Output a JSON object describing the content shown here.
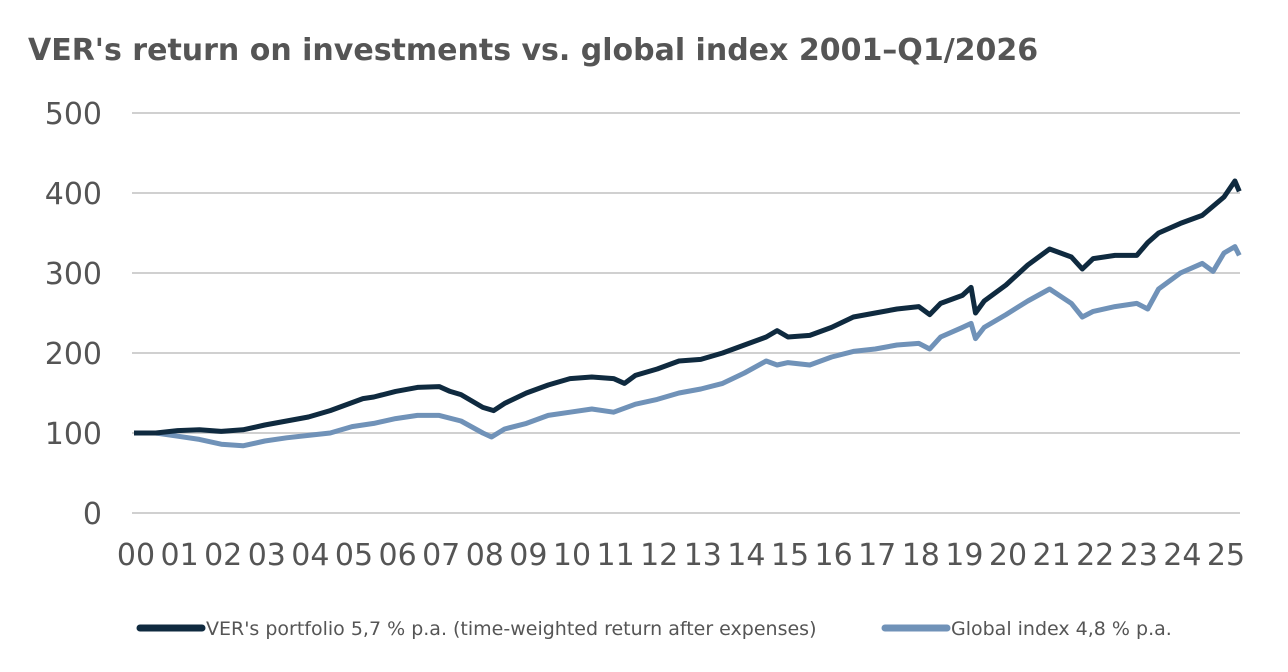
{
  "chart_data": {
    "type": "line",
    "title": "VER's return on investments vs. global index 2001–Q1/2026",
    "xlabel": "",
    "ylabel": "",
    "ylim": [
      0,
      500
    ],
    "yticks": [
      0,
      100,
      200,
      300,
      400,
      500
    ],
    "xlim": [
      2000,
      2025.4
    ],
    "xtick_labels": [
      "00",
      "01",
      "02",
      "03",
      "04",
      "05",
      "06",
      "07",
      "08",
      "09",
      "10",
      "11",
      "12",
      "13",
      "14",
      "15",
      "16",
      "17",
      "18",
      "19",
      "20",
      "21",
      "22",
      "23",
      "24",
      "25"
    ],
    "grid": true,
    "legend_position": "bottom",
    "series": [
      {
        "name": "VER's portfolio 5,7 % p.a. (time-weighted return after expenses)",
        "color": "#0f2a3f",
        "x": [
          2000,
          2000.5,
          2001,
          2001.5,
          2002,
          2002.5,
          2003,
          2003.5,
          2004,
          2004.5,
          2005,
          2005.25,
          2005.5,
          2006,
          2006.5,
          2007,
          2007.25,
          2007.5,
          2007.75,
          2008,
          2008.25,
          2008.5,
          2009,
          2009.5,
          2010,
          2010.5,
          2011,
          2011.25,
          2011.5,
          2012,
          2012.5,
          2013,
          2013.5,
          2014,
          2014.5,
          2014.75,
          2015,
          2015.5,
          2016,
          2016.5,
          2017,
          2017.5,
          2018,
          2018.25,
          2018.5,
          2019,
          2019.2,
          2019.3,
          2019.5,
          2020,
          2020.5,
          2021,
          2021.5,
          2021.75,
          2022,
          2022.5,
          2023,
          2023.25,
          2023.5,
          2024,
          2024.5,
          2025,
          2025.25,
          2025.35
        ],
        "y": [
          100,
          100,
          103,
          104,
          102,
          104,
          110,
          115,
          120,
          128,
          138,
          143,
          145,
          152,
          157,
          158,
          152,
          148,
          140,
          132,
          128,
          137,
          150,
          160,
          168,
          170,
          168,
          162,
          172,
          180,
          190,
          192,
          200,
          210,
          220,
          228,
          220,
          222,
          232,
          245,
          250,
          255,
          258,
          248,
          262,
          272,
          282,
          250,
          265,
          285,
          310,
          330,
          320,
          305,
          318,
          322,
          322,
          338,
          350,
          362,
          372,
          395,
          415,
          402
        ]
      },
      {
        "name": "Global index 4,8 % p.a.",
        "color": "#7092b8",
        "x": [
          2000,
          2000.5,
          2001,
          2001.5,
          2002,
          2002.5,
          2003,
          2003.5,
          2004,
          2004.5,
          2005,
          2005.5,
          2006,
          2006.5,
          2007,
          2007.5,
          2008,
          2008.2,
          2008.5,
          2009,
          2009.5,
          2010,
          2010.5,
          2011,
          2011.5,
          2012,
          2012.5,
          2013,
          2013.5,
          2014,
          2014.5,
          2014.75,
          2015,
          2015.5,
          2016,
          2016.5,
          2017,
          2017.5,
          2018,
          2018.25,
          2018.5,
          2019,
          2019.2,
          2019.3,
          2019.5,
          2020,
          2020.5,
          2021,
          2021.5,
          2021.75,
          2022,
          2022.5,
          2023,
          2023.25,
          2023.5,
          2024,
          2024.5,
          2024.75,
          2025,
          2025.25,
          2025.35
        ],
        "y": [
          100,
          100,
          96,
          92,
          86,
          84,
          90,
          94,
          97,
          100,
          108,
          112,
          118,
          122,
          122,
          115,
          100,
          95,
          105,
          112,
          122,
          126,
          130,
          126,
          136,
          142,
          150,
          155,
          162,
          175,
          190,
          185,
          188,
          185,
          195,
          202,
          205,
          210,
          212,
          205,
          220,
          232,
          237,
          218,
          232,
          248,
          265,
          280,
          262,
          245,
          252,
          258,
          262,
          255,
          280,
          300,
          312,
          302,
          325,
          333,
          322
        ]
      }
    ]
  }
}
